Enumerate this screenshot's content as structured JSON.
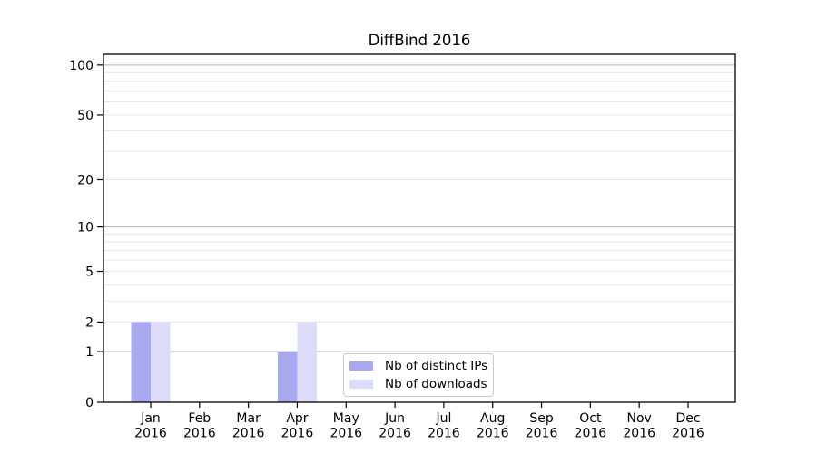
{
  "chart_data": {
    "type": "bar",
    "title": "DiffBind 2016",
    "categories": [
      "Jan",
      "Feb",
      "Mar",
      "Apr",
      "May",
      "Jun",
      "Jul",
      "Aug",
      "Sep",
      "Oct",
      "Nov",
      "Dec"
    ],
    "year_label": "2016",
    "series": [
      {
        "name": "Nb of distinct IPs",
        "color": "#a9a9f0",
        "values": [
          2,
          0,
          0,
          1,
          0,
          0,
          0,
          0,
          0,
          0,
          0,
          0
        ]
      },
      {
        "name": "Nb of downloads",
        "color": "#dcdcf8",
        "values": [
          2,
          0,
          0,
          2,
          0,
          0,
          0,
          0,
          0,
          0,
          0,
          0
        ]
      }
    ],
    "xlabel": "",
    "ylabel": "",
    "y_axis": {
      "scale": "log1p",
      "ticks": [
        0,
        1,
        2,
        5,
        10,
        20,
        50,
        100
      ],
      "major_gridlines": [
        1,
        10,
        100
      ],
      "minor_gridlines": [
        2,
        3,
        4,
        5,
        6,
        7,
        8,
        9,
        20,
        30,
        40,
        50,
        60,
        70,
        80,
        90
      ],
      "ylim": [
        0,
        116
      ]
    },
    "grid": "horizontal",
    "legend_position": "lower center",
    "colors": {
      "axis": "#000000",
      "grid_major": "#b3b3b3",
      "grid_minor": "#e7e7e7",
      "tick_text": "#000000",
      "background": "#ffffff"
    }
  }
}
